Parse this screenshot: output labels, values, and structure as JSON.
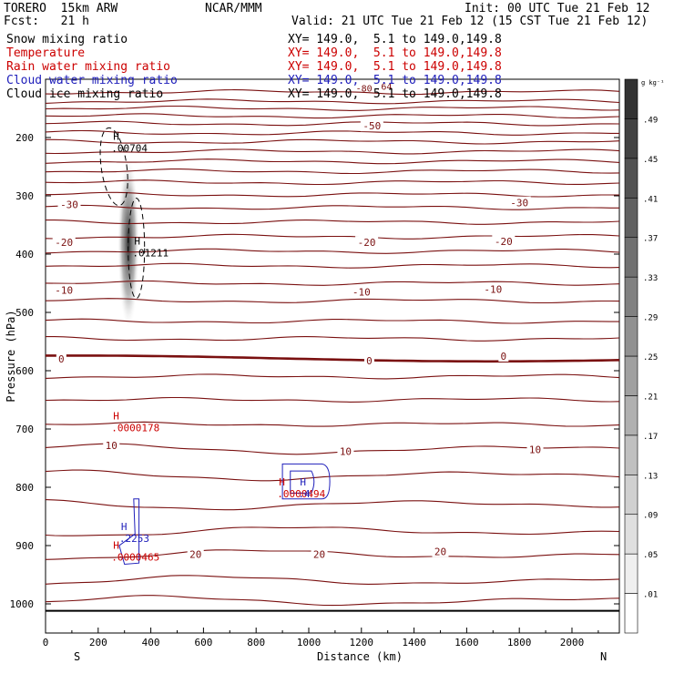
{
  "header": {
    "model": "TORERO  15km ARW",
    "center": "NCAR/MMM",
    "init": "Init: 00 UTC Tue 21 Feb 12",
    "fcst": "Fcst:   21 h",
    "valid": "Valid: 21 UTC Tue 21 Feb 12 (15 CST Tue 21 Feb 12)"
  },
  "fields": [
    {
      "name": "Snow mixing ratio",
      "xy": "XY= 149.0,  5.1 to 149.0,149.8",
      "color": "#000000"
    },
    {
      "name": "Temperature",
      "xy": "XY= 149.0,  5.1 to 149.0,149.8",
      "color": "#cc0000"
    },
    {
      "name": "Rain water mixing ratio",
      "xy": "XY= 149.0,  5.1 to 149.0,149.8",
      "color": "#cc0000"
    },
    {
      "name": "Cloud water mixing ratio",
      "xy": "XY= 149.0,  5.1 to 149.0,149.8",
      "color": "#2020bb"
    },
    {
      "name": "Cloud ice mixing ratio",
      "xy": "XY= 149.0,  5.1 to 149.0,149.8",
      "color": "#000000"
    }
  ],
  "colors": {
    "temperature": "#7a1010",
    "rain": "#cc0000",
    "cloud_water": "#2020bb",
    "snow": "#000000"
  },
  "chart_data": {
    "type": "contour",
    "xlabel": "Distance (km)",
    "ylabel": "Pressure (hPa)",
    "xlim": [
      0,
      2180
    ],
    "ylim": [
      1050,
      100
    ],
    "x_ticks": [
      0,
      200,
      400,
      600,
      800,
      1000,
      1200,
      1400,
      1600,
      1800,
      2000
    ],
    "x_tick_labels": [
      "0",
      "200",
      "400",
      "600",
      "800",
      "1000",
      "1200",
      "1400",
      "1600",
      "1800",
      "2000"
    ],
    "y_ticks": [
      200,
      300,
      400,
      500,
      600,
      700,
      800,
      900,
      1000
    ],
    "y_tick_labels": [
      "200",
      "300",
      "400",
      "500",
      "600",
      "700",
      "800",
      "900",
      "1000"
    ],
    "direction_labels": {
      "left": "S",
      "right": "N"
    },
    "colorbar": {
      "unit": "g kg⁻¹",
      "levels": [
        ".01",
        ".05",
        ".09",
        ".13",
        ".17",
        ".21",
        ".25",
        ".29",
        ".33",
        ".37",
        ".41",
        ".45",
        ".49"
      ]
    },
    "temperature_labels": [
      {
        "text": "-50",
        "x": 1240,
        "p": 180
      },
      {
        "text": "-30",
        "x": 90,
        "p": 315
      },
      {
        "text": "-30",
        "x": 1800,
        "p": 312
      },
      {
        "text": "-20",
        "x": 70,
        "p": 380
      },
      {
        "text": "-20",
        "x": 1220,
        "p": 380
      },
      {
        "text": "-20",
        "x": 1740,
        "p": 378
      },
      {
        "text": "-10",
        "x": 70,
        "p": 462
      },
      {
        "text": "-10",
        "x": 1200,
        "p": 465
      },
      {
        "text": "-10",
        "x": 1700,
        "p": 460
      },
      {
        "text": "0",
        "x": 60,
        "p": 580
      },
      {
        "text": "0",
        "x": 1230,
        "p": 583
      },
      {
        "text": "0",
        "x": 1740,
        "p": 575
      },
      {
        "text": "10",
        "x": 250,
        "p": 728
      },
      {
        "text": "10",
        "x": 1140,
        "p": 738
      },
      {
        "text": "10",
        "x": 1860,
        "p": 735
      },
      {
        "text": "20",
        "x": 570,
        "p": 915
      },
      {
        "text": "20",
        "x": 1040,
        "p": 915
      },
      {
        "text": "20",
        "x": 1500,
        "p": 910
      }
    ],
    "maxima_labels": [
      {
        "text": ".00704",
        "x": 250,
        "p": 210,
        "color": "#000000"
      },
      {
        "text": ".01211",
        "x": 330,
        "p": 390,
        "color": "#000000"
      },
      {
        "text": ".0000178",
        "x": 250,
        "p": 690,
        "color": "#cc0000"
      },
      {
        "text": ".0000494",
        "x": 880,
        "p": 803,
        "color": "#cc0000"
      },
      {
        "text": ".4",
        "x": 960,
        "p": 803,
        "color": "#2020bb"
      },
      {
        "text": ".2253",
        "x": 280,
        "p": 880,
        "color": "#2020bb"
      },
      {
        "text": ".0000465",
        "x": 250,
        "p": 912,
        "color": "#cc0000"
      }
    ],
    "top_labels": [
      {
        "text": "-80",
        "x": 1210,
        "p": 115
      },
      {
        "text": ".64",
        "x": 1285,
        "p": 112
      }
    ]
  }
}
